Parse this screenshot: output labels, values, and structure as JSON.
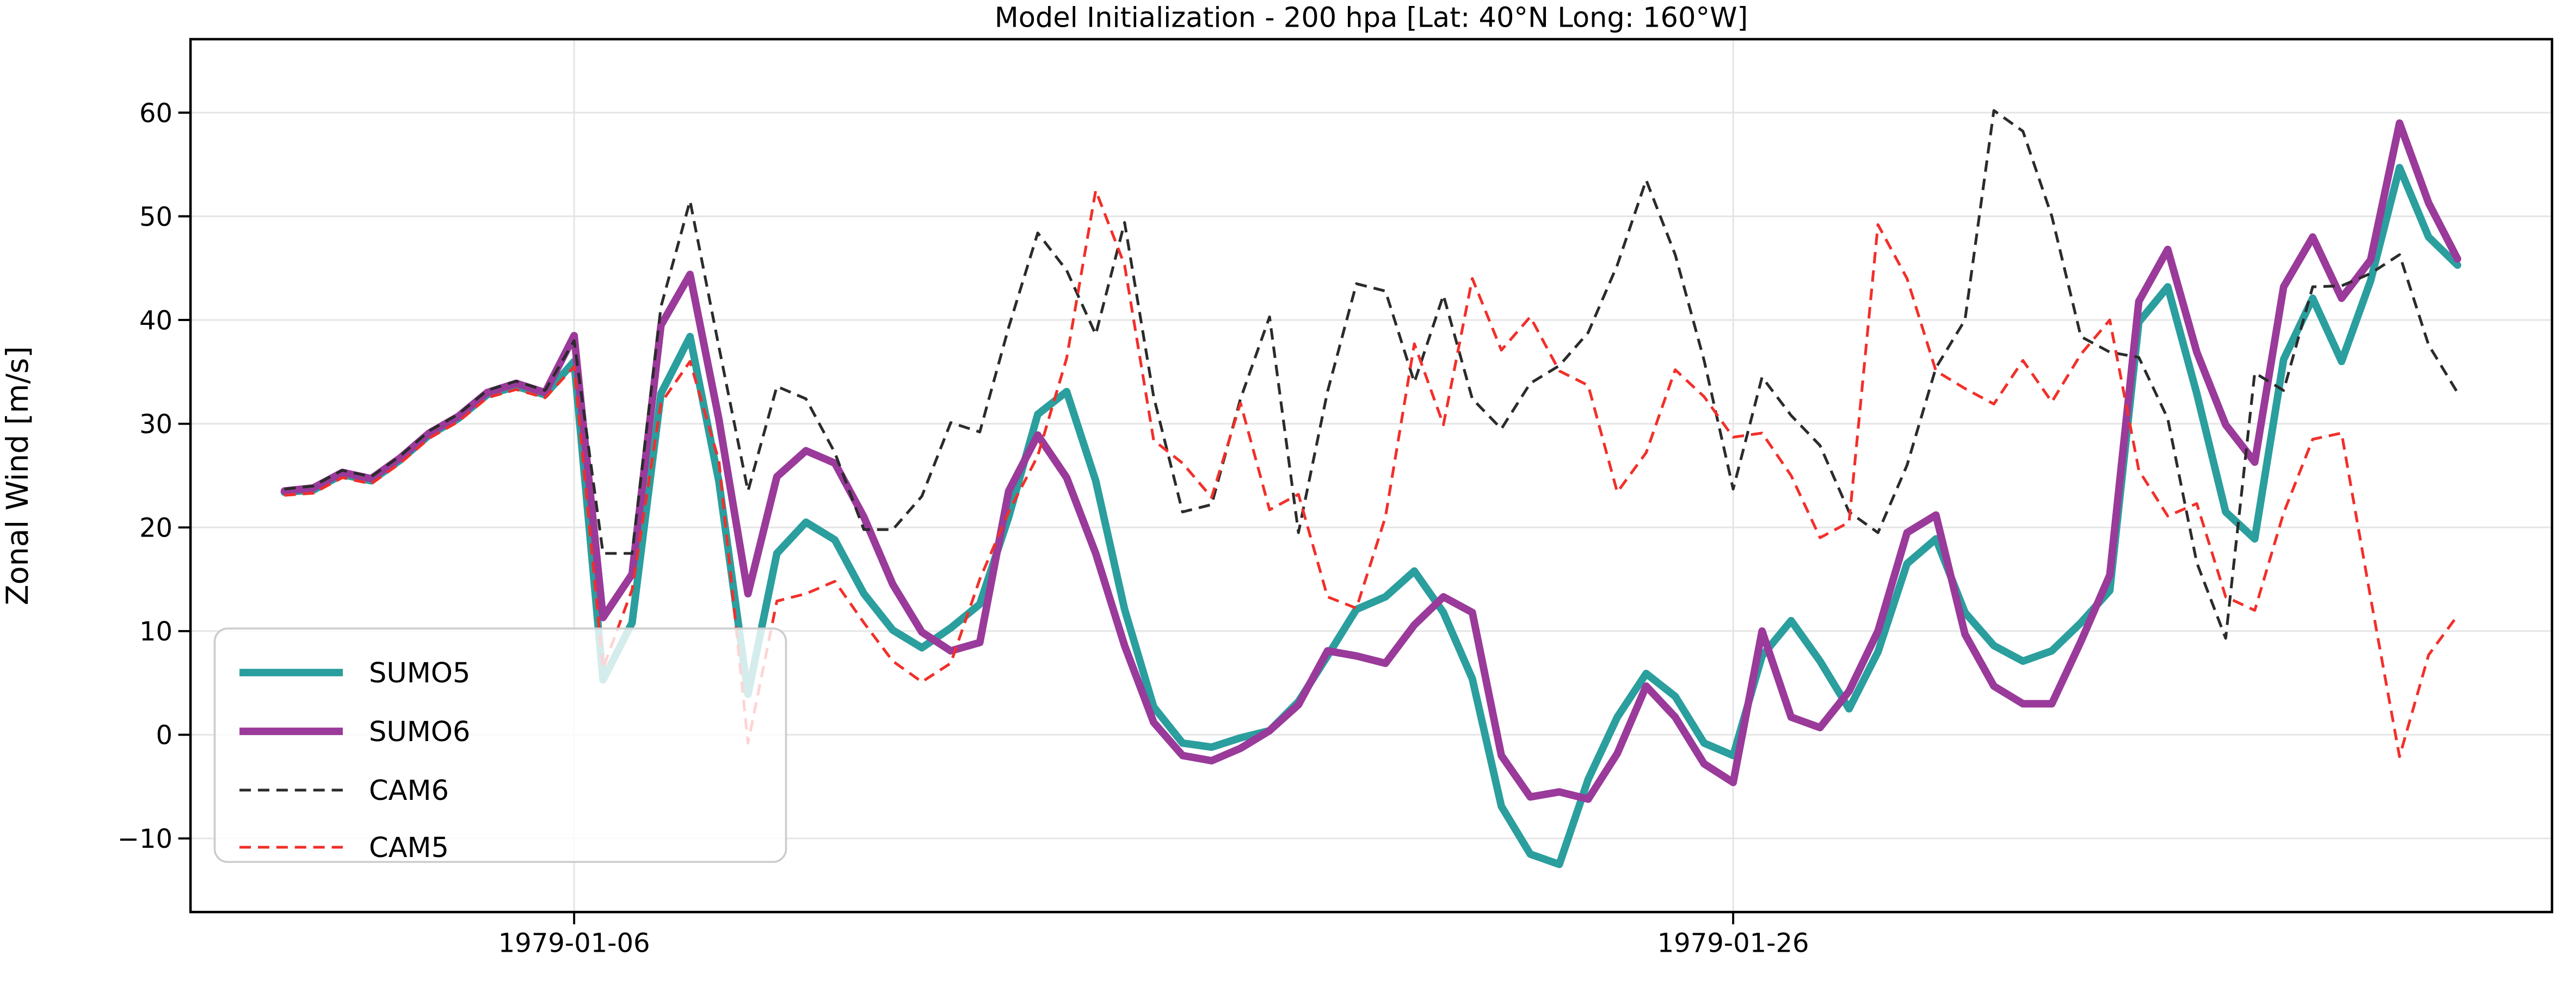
{
  "chart_data": {
    "type": "line",
    "title": "Model Initialization - 200 hpa [Lat: 40°N Long: 160°W]",
    "ylabel": "Zonal Wind [m/s]",
    "grid": true,
    "legend_position": "lower left",
    "ylim": [
      -17.1,
      67.1
    ],
    "xlim_days": [
      -1.62,
      39.13
    ],
    "x_step_days": 0.5,
    "x_first_point_day": 0,
    "yticks": [
      {
        "value": -10,
        "label": "−10"
      },
      {
        "value": 0,
        "label": "0"
      },
      {
        "value": 10,
        "label": "10"
      },
      {
        "value": 20,
        "label": "20"
      },
      {
        "value": 30,
        "label": "30"
      },
      {
        "value": 40,
        "label": "40"
      },
      {
        "value": 50,
        "label": "50"
      },
      {
        "value": 60,
        "label": "60"
      }
    ],
    "xticks": [
      {
        "day": 5,
        "label": "1979-01-06"
      },
      {
        "day": 25,
        "label": "1979-01-26"
      }
    ],
    "series": [
      {
        "name": "SUMO5",
        "color": "#2b9e9e",
        "style": "solid",
        "line_width": 4.6,
        "values": [
          23.4,
          23.6,
          25.1,
          24.5,
          26.5,
          28.9,
          30.5,
          32.8,
          33.6,
          32.8,
          36.0,
          5.3,
          10.8,
          32.9,
          38.4,
          24.4,
          3.9,
          17.5,
          20.5,
          18.8,
          13.6,
          10.1,
          8.4,
          10.3,
          12.6,
          21.0,
          30.9,
          33.1,
          24.5,
          12.1,
          2.7,
          -0.8,
          -1.2,
          -0.3,
          0.4,
          3.2,
          7.6,
          12.1,
          13.3,
          15.8,
          11.8,
          5.4,
          -6.9,
          -11.5,
          -12.5,
          -4.3,
          1.7,
          5.9,
          3.7,
          -0.8,
          -2.0,
          7.6,
          11.0,
          7.1,
          2.5,
          8.0,
          16.5,
          18.9,
          11.8,
          8.6,
          7.1,
          8.1,
          10.8,
          13.9,
          39.8,
          43.2,
          32.9,
          21.5,
          18.9,
          36.2,
          42.1,
          36.0,
          43.8,
          54.7,
          48.0,
          45.3
        ]
      },
      {
        "name": "SUMO6",
        "color": "#9a3a9a",
        "style": "solid",
        "line_width": 4.6,
        "values": [
          23.5,
          23.8,
          25.3,
          24.7,
          26.7,
          29.1,
          30.7,
          33.0,
          33.9,
          33.0,
          38.5,
          11.3,
          15.5,
          39.5,
          44.4,
          30.4,
          13.6,
          24.9,
          27.4,
          26.2,
          21.0,
          14.5,
          9.9,
          8.1,
          8.9,
          23.5,
          28.9,
          24.8,
          17.5,
          8.6,
          1.2,
          -2.0,
          -2.5,
          -1.3,
          0.4,
          2.9,
          8.1,
          7.6,
          6.9,
          10.6,
          13.3,
          11.8,
          -2.0,
          -6.0,
          -5.5,
          -6.2,
          -1.8,
          4.7,
          1.7,
          -2.8,
          -4.6,
          10.0,
          1.7,
          0.7,
          4.2,
          10.0,
          19.5,
          21.2,
          9.7,
          4.7,
          3.0,
          3.0,
          9.0,
          15.4,
          41.8,
          46.8,
          36.9,
          29.9,
          26.3,
          43.2,
          48.0,
          42.1,
          45.8,
          59.0,
          51.3,
          45.9
        ]
      },
      {
        "name": "CAM6",
        "color": "#2b2b2b",
        "style": "dashed",
        "line_width": 1.7,
        "values": [
          23.7,
          24.0,
          25.5,
          24.9,
          26.9,
          29.3,
          30.9,
          33.2,
          34.1,
          33.2,
          38.0,
          17.5,
          17.5,
          41.3,
          51.5,
          37.4,
          23.5,
          33.6,
          32.4,
          27.2,
          19.8,
          19.8,
          23.0,
          30.1,
          29.2,
          39.3,
          48.4,
          44.8,
          38.6,
          49.4,
          32.6,
          21.5,
          22.2,
          32.4,
          40.3,
          19.5,
          33.1,
          43.5,
          42.8,
          34.0,
          42.4,
          32.4,
          29.5,
          33.9,
          35.6,
          38.8,
          45.3,
          53.5,
          46.3,
          36.1,
          23.7,
          34.5,
          30.8,
          27.9,
          21.5,
          19.5,
          26.0,
          35.4,
          40.0,
          60.2,
          58.2,
          50.0,
          38.4,
          36.9,
          36.4,
          30.5,
          16.6,
          9.3,
          34.9,
          33.2,
          43.2,
          43.3,
          44.5,
          46.3,
          37.6,
          33.0
        ]
      },
      {
        "name": "CAM5",
        "color": "#f22f2a",
        "style": "dashed",
        "line_width": 1.7,
        "values": [
          23.1,
          23.3,
          24.8,
          24.2,
          26.2,
          28.6,
          30.2,
          32.5,
          33.3,
          32.5,
          35.5,
          6.4,
          14.0,
          32.0,
          36.0,
          26.4,
          -0.8,
          12.9,
          13.6,
          14.8,
          10.8,
          7.1,
          5.1,
          6.9,
          15.0,
          21.5,
          26.9,
          36.3,
          52.5,
          45.3,
          28.4,
          26.2,
          22.9,
          32.0,
          21.7,
          23.2,
          13.3,
          12.2,
          21.0,
          37.7,
          29.9,
          44.0,
          37.1,
          40.3,
          35.1,
          33.7,
          23.4,
          27.2,
          35.2,
          32.6,
          28.7,
          29.1,
          25.0,
          19.0,
          20.5,
          49.2,
          44.0,
          35.1,
          33.4,
          31.9,
          36.1,
          32.1,
          36.7,
          40.0,
          25.5,
          21.1,
          22.3,
          13.3,
          12.0,
          21.4,
          28.5,
          29.1,
          13.2,
          -2.1,
          7.7,
          11.5
        ]
      }
    ],
    "style_hints": {
      "grid_color": "#e5e5e5",
      "spine_color": "#000000",
      "legend_border_color": "#cccccc",
      "background": "#ffffff"
    }
  }
}
